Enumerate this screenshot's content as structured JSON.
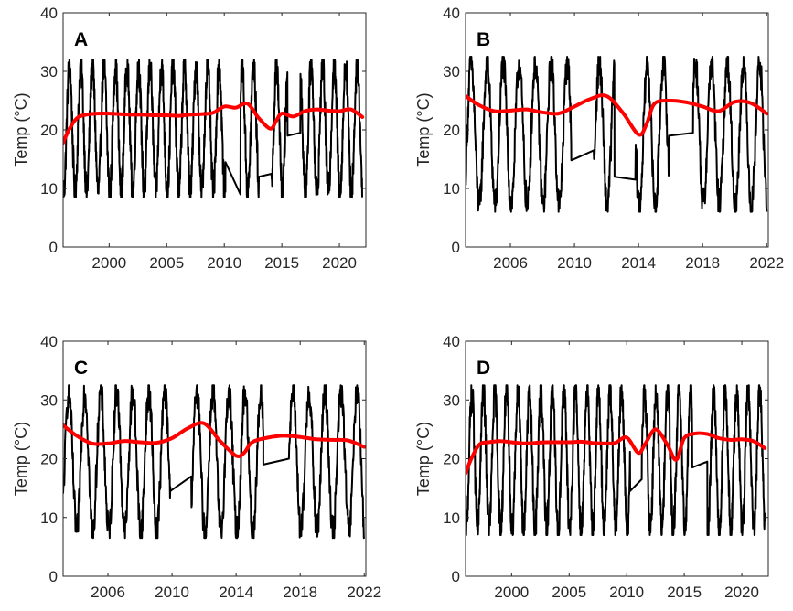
{
  "colors": {
    "raw": "#000000",
    "trend": "#ff0000",
    "axis": "#262626",
    "background": "#ffffff"
  },
  "chart_data": [
    {
      "type": "line",
      "panel_label": "A",
      "ylabel": "Temp (°C)",
      "xlim": [
        1996,
        2022.3
      ],
      "ylim": [
        0,
        40
      ],
      "xticks": [
        2000,
        2005,
        2010,
        2015,
        2020
      ],
      "yticks": [
        0,
        10,
        20,
        30,
        40
      ],
      "raw_series": {
        "start": 1996.0,
        "end": 2022.0,
        "min": 8.5,
        "max": 32.0,
        "gaps": [
          {
            "from": 2010.1,
            "from_value": 14.5,
            "to": 2011.4,
            "to_value": 9.0
          },
          {
            "from": 2013.0,
            "from_value": 12.0,
            "to": 2014.1,
            "to_value": 12.5
          },
          {
            "from": 2015.5,
            "from_value": 19.0,
            "to": 2016.6,
            "to_value": 19.5
          }
        ]
      },
      "trend_series": {
        "x": [
          1996.0,
          1996.5,
          1997.2,
          1998.0,
          1999.0,
          2000.0,
          2001.0,
          2002.0,
          2003.0,
          2004.0,
          2005.0,
          2006.0,
          2007.0,
          2008.0,
          2009.0,
          2010.0,
          2011.0,
          2012.0,
          2013.0,
          2014.0,
          2014.5,
          2015.0,
          2016.0,
          2017.0,
          2018.0,
          2019.0,
          2020.0,
          2021.0,
          2022.0
        ],
        "y": [
          17.8,
          20.0,
          22.0,
          22.6,
          22.8,
          22.8,
          22.7,
          22.6,
          22.6,
          22.5,
          22.5,
          22.4,
          22.6,
          22.7,
          22.9,
          24.0,
          23.8,
          24.5,
          22.0,
          20.2,
          21.5,
          22.8,
          22.3,
          23.2,
          23.5,
          23.3,
          23.2,
          23.5,
          22.2
        ]
      }
    },
    {
      "type": "line",
      "panel_label": "B",
      "ylabel": "Temp (°C)",
      "xlim": [
        2003.2,
        2022.1
      ],
      "ylim": [
        0,
        40
      ],
      "xticks": [
        2006,
        2010,
        2014,
        2018,
        2022
      ],
      "yticks": [
        0,
        10,
        20,
        30,
        40
      ],
      "raw_series": {
        "start": 2003.2,
        "end": 2022.0,
        "min": 6.0,
        "max": 32.5,
        "gaps": [
          {
            "from": 2009.8,
            "from_value": 14.8,
            "to": 2011.2,
            "to_value": 16.5
          },
          {
            "from": 2012.5,
            "from_value": 12.0,
            "to": 2013.8,
            "to_value": 11.5
          },
          {
            "from": 2015.9,
            "from_value": 19.0,
            "to": 2017.4,
            "to_value": 19.5
          }
        ]
      },
      "trend_series": {
        "x": [
          2003.2,
          2004.0,
          2005.0,
          2006.0,
          2007.0,
          2008.0,
          2009.0,
          2010.0,
          2011.0,
          2012.0,
          2013.0,
          2014.0,
          2014.5,
          2015.0,
          2016.0,
          2017.0,
          2018.0,
          2019.0,
          2020.0,
          2021.0,
          2022.0
        ],
        "y": [
          25.8,
          24.3,
          23.2,
          23.3,
          23.5,
          23.0,
          22.8,
          24.0,
          25.3,
          25.8,
          23.0,
          19.2,
          21.0,
          24.5,
          25.0,
          24.7,
          24.0,
          23.2,
          24.8,
          24.6,
          22.8
        ]
      }
    },
    {
      "type": "line",
      "panel_label": "C",
      "ylabel": "Temp (°C)",
      "xlim": [
        2003.2,
        2022.1
      ],
      "ylim": [
        0,
        40
      ],
      "xticks": [
        2006,
        2010,
        2014,
        2018,
        2022
      ],
      "yticks": [
        0,
        10,
        20,
        30,
        40
      ],
      "raw_series": {
        "start": 2003.2,
        "end": 2022.0,
        "min": 6.5,
        "max": 32.5,
        "gaps": [
          {
            "from": 2009.9,
            "from_value": 14.5,
            "to": 2011.2,
            "to_value": 17.0
          },
          {
            "from": 2015.7,
            "from_value": 19.0,
            "to": 2017.3,
            "to_value": 20.0
          }
        ]
      },
      "trend_series": {
        "x": [
          2003.2,
          2004.0,
          2005.0,
          2006.0,
          2007.0,
          2008.0,
          2009.0,
          2010.0,
          2011.0,
          2012.0,
          2013.0,
          2014.0,
          2014.5,
          2015.0,
          2016.0,
          2017.0,
          2018.0,
          2019.0,
          2020.0,
          2021.0,
          2022.0
        ],
        "y": [
          25.7,
          24.0,
          22.6,
          22.6,
          23.0,
          22.8,
          22.7,
          23.5,
          25.2,
          26.0,
          23.0,
          20.5,
          21.0,
          22.8,
          23.6,
          23.9,
          23.7,
          23.3,
          23.2,
          23.1,
          22.0
        ]
      }
    },
    {
      "type": "line",
      "panel_label": "D",
      "ylabel": "Temp (°C)",
      "xlim": [
        1996,
        2022.3
      ],
      "ylim": [
        0,
        40
      ],
      "xticks": [
        2000,
        2005,
        2010,
        2015,
        2020
      ],
      "yticks": [
        0,
        10,
        20,
        30,
        40
      ],
      "raw_series": {
        "start": 1996.0,
        "end": 2022.0,
        "min": 7.0,
        "max": 32.5,
        "gaps": [
          {
            "from": 2010.3,
            "from_value": 14.5,
            "to": 2011.3,
            "to_value": 16.5
          },
          {
            "from": 2015.7,
            "from_value": 18.5,
            "to": 2017.0,
            "to_value": 19.5
          }
        ]
      },
      "trend_series": {
        "x": [
          1996.0,
          1996.5,
          1997.2,
          1998.0,
          1999.0,
          2000.0,
          2001.0,
          2002.0,
          2003.0,
          2004.0,
          2005.0,
          2006.0,
          2007.0,
          2008.0,
          2009.0,
          2010.0,
          2011.0,
          2011.6,
          2012.5,
          2013.5,
          2014.3,
          2015.0,
          2016.0,
          2017.0,
          2018.0,
          2019.0,
          2020.0,
          2021.0,
          2022.0
        ],
        "y": [
          17.5,
          20.0,
          22.4,
          22.8,
          23.0,
          22.8,
          22.6,
          22.7,
          22.8,
          22.8,
          22.8,
          22.9,
          22.7,
          22.6,
          22.7,
          23.6,
          21.0,
          22.5,
          25.0,
          22.5,
          19.8,
          23.5,
          24.3,
          24.2,
          23.5,
          23.2,
          23.3,
          23.0,
          21.8
        ]
      }
    }
  ]
}
